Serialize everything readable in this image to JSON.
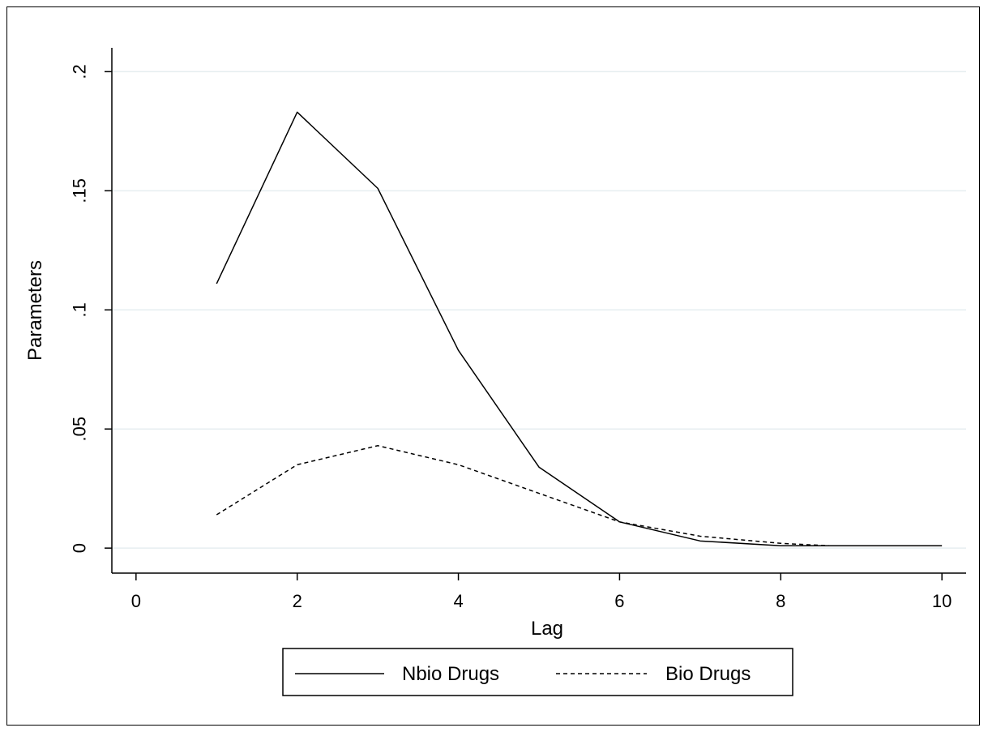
{
  "chart_data": {
    "type": "line",
    "xlabel": "Lag",
    "ylabel": "Parameters",
    "xlim": [
      -0.3,
      10.3
    ],
    "ylim": [
      -0.0105,
      0.21
    ],
    "x_ticks": [
      0,
      2,
      4,
      6,
      8,
      10
    ],
    "x_tick_labels": [
      "0",
      "2",
      "4",
      "6",
      "8",
      "10"
    ],
    "y_ticks": [
      0,
      0.05,
      0.1,
      0.15,
      0.2
    ],
    "y_tick_labels": [
      "0",
      ".05",
      ".1",
      ".15",
      ".2"
    ],
    "grid": "horizontal",
    "legend_position": "bottom",
    "series": [
      {
        "name": "Nbio Drugs",
        "style": "solid",
        "color": "#000000",
        "x": [
          1,
          2,
          3,
          4,
          5,
          6,
          7,
          8,
          9,
          10
        ],
        "y": [
          0.111,
          0.183,
          0.151,
          0.083,
          0.034,
          0.011,
          0.003,
          0.001,
          0.001,
          0.001
        ]
      },
      {
        "name": "Bio Drugs",
        "style": "dashed",
        "color": "#000000",
        "x": [
          1,
          2,
          3,
          4,
          5,
          6,
          7,
          8,
          8.6
        ],
        "y": [
          0.014,
          0.035,
          0.043,
          0.035,
          0.023,
          0.011,
          0.005,
          0.002,
          0.001
        ]
      }
    ]
  }
}
